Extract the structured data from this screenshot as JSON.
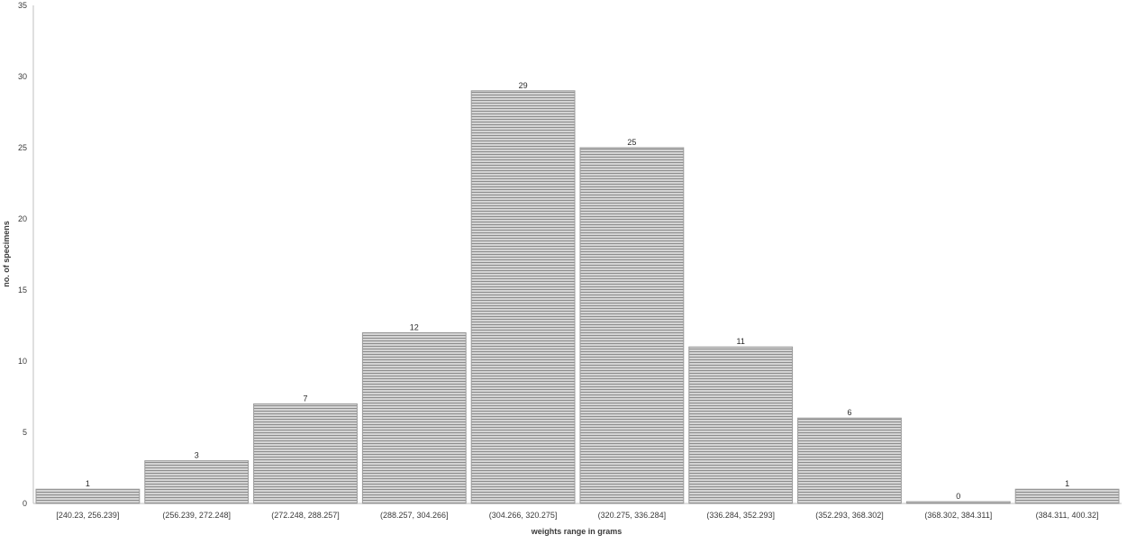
{
  "chart_data": {
    "type": "bar",
    "title": "",
    "xlabel": "weights range in grams",
    "ylabel": "no. of specimens",
    "ylim": [
      0,
      35
    ],
    "yticks": [
      0,
      5,
      10,
      15,
      20,
      25,
      30,
      35
    ],
    "grid": false,
    "legend": "none",
    "categories": [
      "[240.23, 256.239]",
      "(256.239, 272.248]",
      "(272.248, 288.257]",
      "(288.257, 304.266]",
      "(304.266, 320.275]",
      "(320.275, 336.284]",
      "(336.284, 352.293]",
      "(352.293, 368.302]",
      "(368.302, 384.311]",
      "(384.311, 400.32]"
    ],
    "values": [
      1,
      3,
      7,
      12,
      29,
      25,
      11,
      6,
      0,
      1
    ],
    "colors": {
      "bar_fill": "#d4d4d4",
      "bar_stripe": "#8c8c8c",
      "bar_border": "#9a9a9a",
      "axis": "#bfbfbf"
    }
  }
}
